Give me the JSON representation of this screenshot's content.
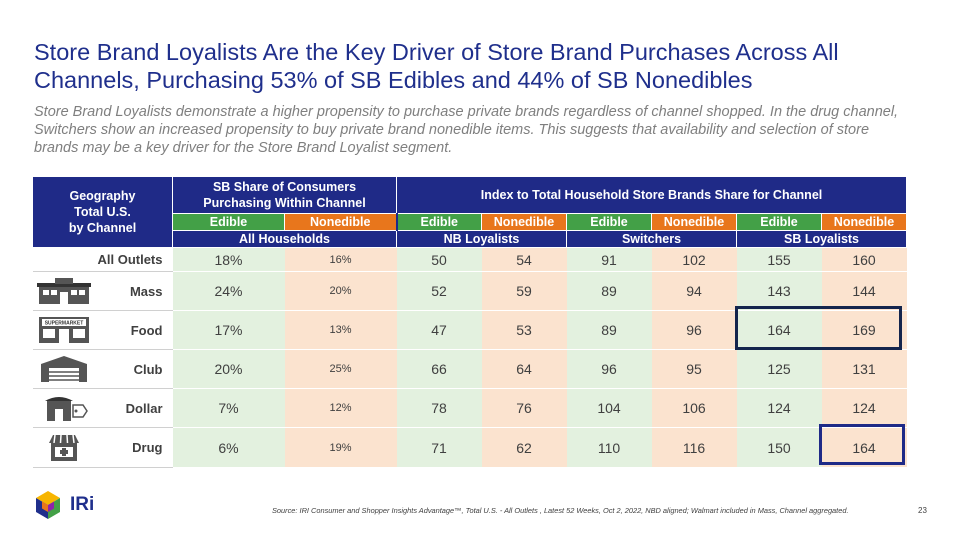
{
  "title": "Store Brand Loyalists Are the Key Driver of Store Brand Purchases Across All Channels, Purchasing 53% of SB Edibles and 44% of SB Nonedibles",
  "subtitle": "Store Brand Loyalists demonstrate a higher propensity to purchase private brands regardless of channel shopped. In the drug channel, Switchers show an increased propensity to buy private brand nonedible items. This suggests that availability and selection of store brands may be a key driver for the Store Brand Loyalist segment.",
  "table": {
    "geo_header_1": "Geography",
    "geo_header_2": "Total U.S.",
    "geo_header_3": "by Channel",
    "sb_share_header_1": "SB Share of Consumers",
    "sb_share_header_2": "Purchasing Within Channel",
    "index_header": "Index to Total Household Store Brands Share for Channel",
    "sub_headers": [
      "Edible",
      "Nonedible",
      "Edible",
      "Nonedible",
      "Edible",
      "Nonedible",
      "Edible",
      "Nonedible"
    ],
    "groups": [
      "All Households",
      "NB Loyalists",
      "Switchers",
      "SB Loyalists"
    ],
    "rows": [
      {
        "label": "All Outlets",
        "icon": "none",
        "v": [
          "18%",
          "16%",
          "50",
          "54",
          "91",
          "102",
          "155",
          "160"
        ]
      },
      {
        "label": "Mass",
        "icon": "mass-store-icon",
        "v": [
          "24%",
          "20%",
          "52",
          "59",
          "89",
          "94",
          "143",
          "144"
        ]
      },
      {
        "label": "Food",
        "icon": "supermarket-icon",
        "v": [
          "17%",
          "13%",
          "47",
          "53",
          "89",
          "96",
          "164",
          "169"
        ]
      },
      {
        "label": "Club",
        "icon": "club-warehouse-icon",
        "v": [
          "20%",
          "25%",
          "66",
          "64",
          "96",
          "95",
          "125",
          "131"
        ]
      },
      {
        "label": "Dollar",
        "icon": "dollar-store-icon",
        "v": [
          "7%",
          "12%",
          "78",
          "76",
          "104",
          "106",
          "124",
          "124"
        ]
      },
      {
        "label": "Drug",
        "icon": "drug-store-icon",
        "v": [
          "6%",
          "19%",
          "71",
          "62",
          "110",
          "116",
          "150",
          "164"
        ]
      }
    ],
    "supermarket_sign": "SUPERMARKET"
  },
  "logo_text": "IRi",
  "source": "Source: IRI Consumer and Shopper Insights Advantage™, Total U.S. - All Outlets , Latest 52 Weeks, Oct 2, 2022, NBD aligned; Walmart included in Mass, Channel aggregated.",
  "page_number": "23",
  "colors": {
    "navy": "#1f2a87",
    "edible": "#43a047",
    "nonedible": "#e8761c",
    "edible_bg": "#e3f1df",
    "nonedible_bg": "#fbe3cf"
  }
}
